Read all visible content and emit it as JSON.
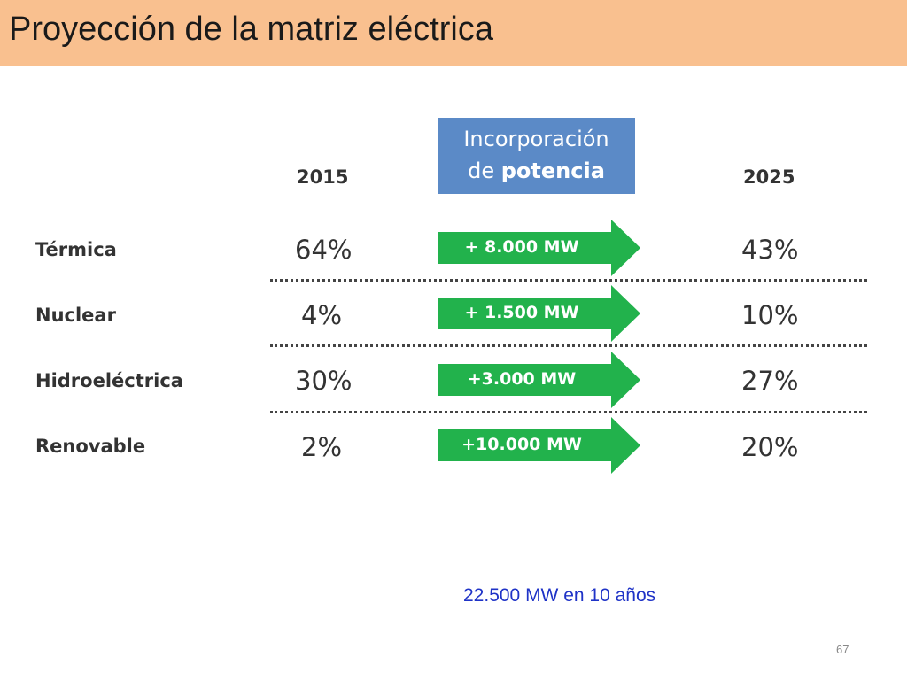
{
  "slide": {
    "title": "Proyección de la matriz eléctrica",
    "page_number": "67",
    "footer_note": "22.500 MW en 10 años"
  },
  "table": {
    "year_start": "2015",
    "year_end": "2025",
    "incorporation_header": {
      "line1": "Incorporación",
      "line2_prefix": "de ",
      "line2_bold": "potencia"
    },
    "rows": [
      {
        "source": "Térmica",
        "pct_2015": "64%",
        "added": "+ 8.000 MW",
        "pct_2025": "43%"
      },
      {
        "source": "Nuclear",
        "pct_2015": "4%",
        "added": "+ 1.500 MW",
        "pct_2025": "10%"
      },
      {
        "source": "Hidroeléctrica",
        "pct_2015": "30%",
        "added": "+3.000 MW",
        "pct_2025": "27%"
      },
      {
        "source": "Renovable",
        "pct_2015": "2%",
        "added": "+10.000 MW",
        "pct_2025": "20%"
      }
    ]
  },
  "colors": {
    "title_bar": "#f9c08f",
    "header_box": "#5b8ac7",
    "arrow_green": "#22b24c",
    "footer_text": "#1f33c7"
  }
}
